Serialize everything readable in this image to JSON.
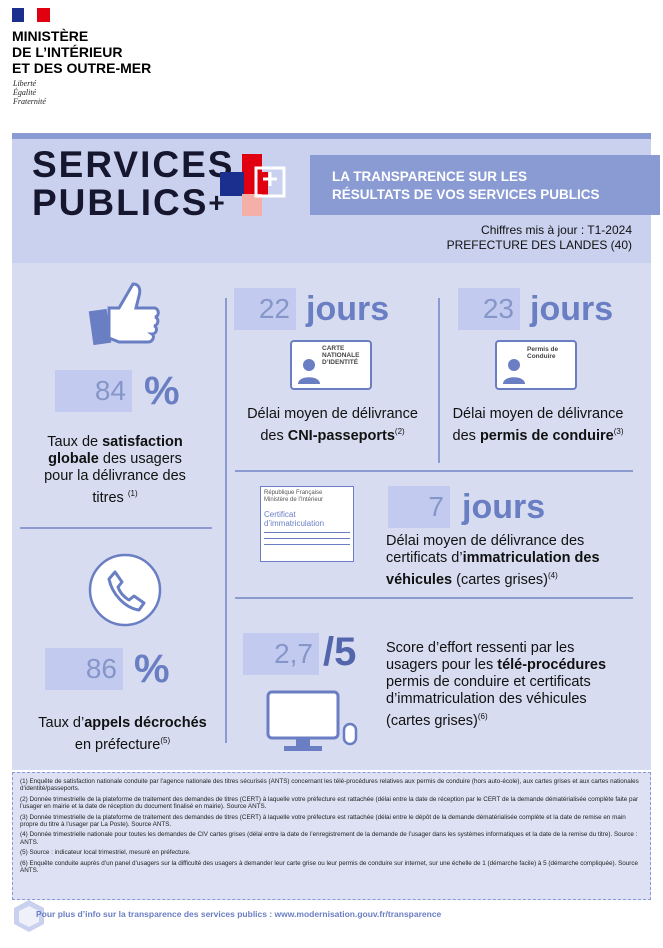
{
  "header": {
    "ministry": [
      "MINISTÈRE",
      "DE L’INTÉRIEUR",
      "ET DES OUTRE-MER"
    ],
    "motto": [
      "Liberté",
      "Égalité",
      "Fraternité"
    ]
  },
  "banner": {
    "brand": [
      "SERVICES",
      "PUBLICS"
    ],
    "brand_plus": "+",
    "tagline": [
      "LA TRANSPARENCE SUR LES",
      "RÉSULTATS DE VOS SERVICES PUBLICS"
    ],
    "update": "Chiffres mis à jour : T1-2024",
    "prefecture": "PREFECTURE DES LANDES (40)"
  },
  "stats": [
    {
      "value": "84",
      "unit": "%",
      "text": {
        "before": "Taux de ",
        "bold": "satisfaction globale",
        "after": " des usagers pour la délivrance des titres",
        "note": "(1)"
      }
    },
    {
      "value": "22",
      "unit": "jours",
      "text": {
        "before": "Délai moyen de délivrance des ",
        "bold": "CNI-passeports",
        "after": "",
        "note": "(2)"
      },
      "card": [
        "CARTE NATIONALE",
        "D’IDENTITÉ"
      ]
    },
    {
      "value": "23",
      "unit": "jours",
      "text": {
        "before": "Délai moyen de délivrance des ",
        "bold": "permis de conduire",
        "after": "",
        "note": "(3)"
      },
      "card": [
        "Permis de Conduire"
      ]
    },
    {
      "value": "7",
      "unit": "jours",
      "text": {
        "before": "Délai moyen de délivrance des certificats d’",
        "bold": "immatriculation des véhicules",
        "after": " (cartes grises)",
        "note": "(4)"
      },
      "card": [
        "République Française",
        "Ministère de l’Intérieur",
        "Certificat",
        "d’immatriculation"
      ]
    },
    {
      "value": "86",
      "unit": "%",
      "text": {
        "before": "Taux d’",
        "bold": "appels décrochés",
        "after": " en préfecture",
        "note": "(5)"
      }
    },
    {
      "value": "2,7",
      "unit": "/5",
      "text": {
        "before": "Score d’effort ressenti par les usagers pour les ",
        "bold": "télé-procédures",
        "after": " permis de conduire et certificats d’immatriculation des véhicules (cartes grises)",
        "note": "(6)"
      }
    }
  ],
  "footnotes": [
    "(1) Enquête de satisfaction nationale conduite par l’agence nationale des titres sécurisés (ANTS) concernant les télé-procédures relatives aux permis de conduire (hors auto-école), aux cartes grises et aux cartes nationales d’identité/passeports.",
    "(2) Donnée trimestrielle de la plateforme de traitement des demandes de titres (CERT) à laquelle votre préfecture est rattachée (délai entre la date de réception par le CERT de la demande dématérialisée complète faite par l’usager en mairie et la date de réception du document finalisé en mairie). Source ANTS.",
    "(3) Donnée trimestrielle de la plateforme de traitement des demandes de titres (CERT) à laquelle votre préfecture est rattachée (délai entre le dépôt de la demande dématérialisée complète et la date de remise en main propre du titre à l’usager par La Poste). Source ANTS.",
    "(4) Donnée trimestrielle nationale pour toutes les demandes de CIV cartes grises (délai entre la date de l’enregistrement de la demande de l’usager dans les systèmes informatiques et la date de la remise du titre). Source : ANTS.",
    "(5) Source : indicateur local trimestriel, mesuré en préfecture.",
    "(6) Enquête conduite auprès d’un panel d’usagers sur la difficulté des usagers à demander leur carte grise ou leur permis de conduire sur internet, sur une échelle de 1 (démarche facile) à 5 (démarche compliquée). Source ANTS."
  ],
  "footer": "Pour plus d’info sur la transparence des services publics : www.modernisation.gouv.fr/transparence"
}
